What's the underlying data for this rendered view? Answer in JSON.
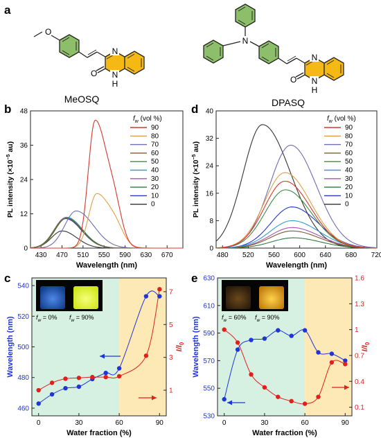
{
  "panels": {
    "a": {
      "letter": "a"
    },
    "b": {
      "letter": "b"
    },
    "c": {
      "letter": "c"
    },
    "d": {
      "letter": "d"
    },
    "e": {
      "letter": "e"
    }
  },
  "molecules": {
    "meosq": {
      "name": "MeOSQ",
      "atoms": {
        "o_methoxy": "O",
        "n_top": "N",
        "o_carbonyl": "O",
        "nh": "N",
        "h": "H"
      }
    },
    "dpasq": {
      "name": "DPASQ",
      "atoms": {
        "n_amine": "N",
        "n_top": "N",
        "o_carbonyl": "O",
        "nh": "N",
        "h": "H"
      }
    }
  },
  "colors": {
    "yellow_ring": "#f5b915",
    "green_ring": "#8dbf6a",
    "blue_axis": "#1f35d6",
    "red_axis": "#e0201b",
    "green_zone": "#d6f0e2",
    "orange_zone": "#fde9b6"
  },
  "chart_data": [
    {
      "id": "b",
      "type": "line",
      "xlabel": "Wavelength (nm)",
      "ylabel_main": "PL intensity (×10",
      "ylabel_exp": "−5",
      "ylabel_tail": " au)",
      "xlim": [
        410,
        700
      ],
      "ylim": [
        0,
        48
      ],
      "xticks": [
        430,
        470,
        510,
        550,
        590,
        630,
        670
      ],
      "yticks": [
        0,
        12,
        24,
        36,
        48
      ],
      "legend_title_base": "f",
      "legend_title_sub": "w",
      "legend_title_rest": " (vol %)",
      "legend_position": "top-right",
      "series": [
        {
          "name": "90",
          "color": "#d9362c",
          "peak": 533,
          "height": 44.5,
          "sigmaL": 13,
          "sigmaR": 23,
          "tail": 0.22
        },
        {
          "name": "80",
          "color": "#e0a043",
          "peak": 536,
          "height": 19,
          "sigmaL": 15,
          "sigmaR": 27,
          "tail": 0.18
        },
        {
          "name": "70",
          "color": "#6d6cb4",
          "peak": 497,
          "height": 13,
          "sigmaL": 22,
          "sigmaR": 33
        },
        {
          "name": "60",
          "color": "#7e5c2c",
          "peak": 478,
          "height": 10.5,
          "sigmaL": 22,
          "sigmaR": 30
        },
        {
          "name": "50",
          "color": "#3b8e3f",
          "peak": 479,
          "height": 10.5,
          "sigmaL": 22,
          "sigmaR": 30
        },
        {
          "name": "40",
          "color": "#3a98cf",
          "peak": 479,
          "height": 10.8,
          "sigmaL": 22,
          "sigmaR": 30
        },
        {
          "name": "30",
          "color": "#a356b3",
          "peak": 478,
          "height": 10.8,
          "sigmaL": 22,
          "sigmaR": 30
        },
        {
          "name": "20",
          "color": "#2c7a3f",
          "peak": 477,
          "height": 10.6,
          "sigmaL": 22,
          "sigmaR": 30
        },
        {
          "name": "10",
          "color": "#2438c9",
          "peak": 477,
          "height": 10.3,
          "sigmaL": 22,
          "sigmaR": 30
        },
        {
          "name": "0",
          "color": "#333333",
          "peak": 470,
          "height": 6,
          "sigmaL": 20,
          "sigmaR": 28
        }
      ]
    },
    {
      "id": "d",
      "type": "line",
      "xlabel": "Wavelength (nm)",
      "ylabel_main": "PL intensity (×10",
      "ylabel_exp": "−5",
      "ylabel_tail": " au)",
      "xlim": [
        470,
        720
      ],
      "ylim": [
        0,
        40
      ],
      "xticks": [
        480,
        520,
        560,
        600,
        640,
        680,
        720
      ],
      "yticks": [
        0,
        8,
        16,
        24,
        32,
        40
      ],
      "legend_title_base": "f",
      "legend_title_sub": "w",
      "legend_title_rest": " (vol %)",
      "legend_position": "top-right",
      "series": [
        {
          "name": "90",
          "color": "#d9362c",
          "peak": 577,
          "height": 19.5,
          "sigmaL": 32,
          "sigmaR": 40
        },
        {
          "name": "80",
          "color": "#e0a043",
          "peak": 577,
          "height": 22,
          "sigmaL": 32,
          "sigmaR": 40
        },
        {
          "name": "70",
          "color": "#6d6cb4",
          "peak": 586,
          "height": 30,
          "sigmaL": 33,
          "sigmaR": 40
        },
        {
          "name": "60",
          "color": "#7e5c2c",
          "peak": 588,
          "height": 5,
          "sigmaL": 34,
          "sigmaR": 42
        },
        {
          "name": "50",
          "color": "#3b8e3f",
          "peak": 578,
          "height": 17,
          "sigmaL": 32,
          "sigmaR": 40
        },
        {
          "name": "40",
          "color": "#3a98cf",
          "peak": 588,
          "height": 8,
          "sigmaL": 34,
          "sigmaR": 42
        },
        {
          "name": "30",
          "color": "#a356b3",
          "peak": 588,
          "height": 6,
          "sigmaL": 34,
          "sigmaR": 42
        },
        {
          "name": "20",
          "color": "#2c7a3f",
          "peak": 590,
          "height": 3,
          "sigmaL": 34,
          "sigmaR": 42
        },
        {
          "name": "10",
          "color": "#2438c9",
          "peak": 588,
          "height": 12,
          "sigmaL": 33,
          "sigmaR": 41
        },
        {
          "name": "0",
          "color": "#333333",
          "peak": 542,
          "height": 36,
          "sigmaL": 30,
          "sigmaR": 44
        }
      ]
    },
    {
      "id": "c",
      "type": "scatter",
      "xlabel": "Water fraction (%)",
      "ylabel_left": "Wavelength (nm)",
      "ylabel_right_base": "I/I",
      "ylabel_right_sub": "0",
      "xlim": [
        -5,
        95
      ],
      "ylim_left": [
        455,
        545
      ],
      "ylim_right": [
        -0.56,
        7.84
      ],
      "xticks": [
        0,
        30,
        60,
        90
      ],
      "yticks_left": [
        460,
        480,
        500,
        520,
        540
      ],
      "yticks_right": [
        1,
        3,
        5,
        7
      ],
      "zone_split": 60,
      "x": [
        0,
        10,
        20,
        30,
        40,
        50,
        60,
        80,
        90
      ],
      "wavelength": [
        463,
        469,
        473,
        474,
        479,
        483,
        486,
        533,
        533
      ],
      "intensity": [
        1.0,
        1.45,
        1.7,
        1.75,
        1.8,
        1.8,
        1.85,
        3.1,
        7.15
      ],
      "inset_labels": [
        {
          "base": "f",
          "sub": "w",
          "rest": " = 0%"
        },
        {
          "base": "f",
          "sub": "w",
          "rest": " = 90%"
        }
      ]
    },
    {
      "id": "e",
      "type": "scatter",
      "xlabel": "Water fraction (%)",
      "ylabel_left": "Wavelength (nm)",
      "ylabel_right_base": "I/I",
      "ylabel_right_sub": "0",
      "xlim": [
        -5,
        95
      ],
      "ylim_left": [
        530,
        630
      ],
      "ylim_right": [
        0.0,
        1.6
      ],
      "xticks": [
        0,
        30,
        60,
        90
      ],
      "yticks_left": [
        530,
        550,
        570,
        590,
        610,
        630
      ],
      "yticks_right": [
        0.1,
        0.4,
        0.7,
        1.0,
        1.3,
        1.6
      ],
      "zone_split": 60,
      "x": [
        0,
        10,
        20,
        30,
        40,
        50,
        60,
        70,
        80,
        90
      ],
      "wavelength": [
        542,
        578,
        585,
        586,
        592,
        588,
        592,
        576,
        575,
        570
      ],
      "intensity": [
        1.0,
        0.85,
        0.48,
        0.33,
        0.22,
        0.17,
        0.14,
        0.22,
        0.62,
        0.6
      ],
      "inset_labels": [
        {
          "base": "f",
          "sub": "w",
          "rest": " = 60%"
        },
        {
          "base": "f",
          "sub": "w",
          "rest": " = 90%"
        }
      ]
    }
  ]
}
